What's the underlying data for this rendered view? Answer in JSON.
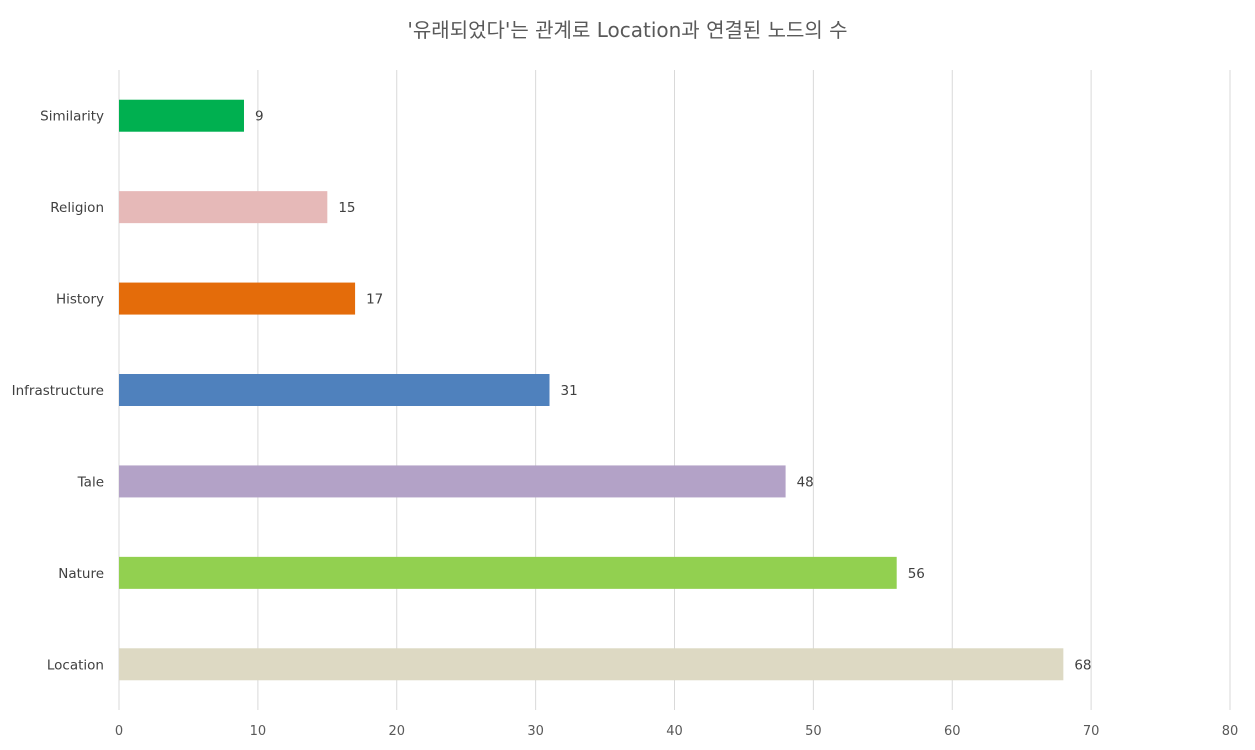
{
  "chart_data": {
    "type": "bar",
    "orientation": "horizontal",
    "title": "'유래되었다'는 관계로 Location과 연결된 노드의 수",
    "xlabel": "",
    "ylabel": "",
    "xlim": [
      0,
      80
    ],
    "x_ticks": [
      0,
      10,
      20,
      30,
      40,
      50,
      60,
      70,
      80
    ],
    "grid": "vertical",
    "legend": "none",
    "categories": [
      "Similarity",
      "Religion",
      "History",
      "Infrastructure",
      "Tale",
      "Nature",
      "Location"
    ],
    "values": [
      9,
      15,
      17,
      31,
      48,
      56,
      68
    ],
    "colors": [
      "#00b050",
      "#e6b9b8",
      "#e46c0a",
      "#4f81bd",
      "#b3a2c7",
      "#92d050",
      "#ddd9c3"
    ]
  }
}
